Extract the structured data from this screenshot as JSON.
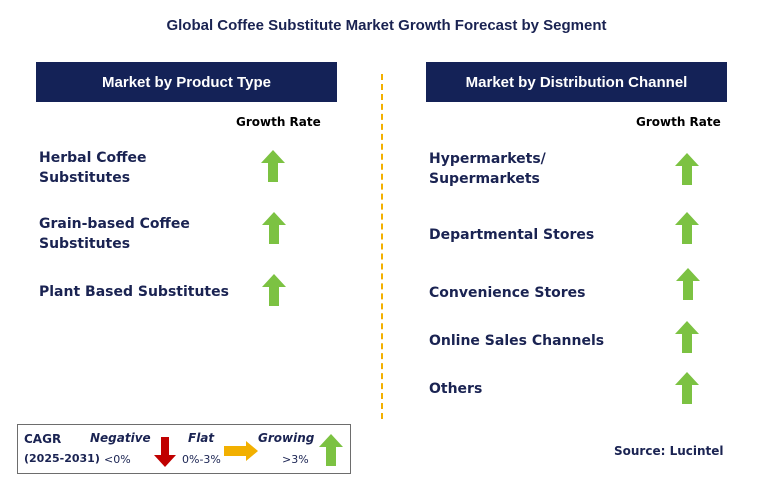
{
  "title": "Global Coffee Substitute Market Growth Forecast by Segment",
  "left_panel": {
    "header": "Market by Product Type",
    "growth_label": "Growth Rate",
    "items": [
      {
        "label_line1": "Herbal Coffee",
        "label_line2": "Substitutes",
        "trend": "growing"
      },
      {
        "label_line1": "Grain-based Coffee",
        "label_line2": "Substitutes",
        "trend": "growing"
      },
      {
        "label_line1": "Plant Based Substitutes",
        "label_line2": "",
        "trend": "growing"
      }
    ]
  },
  "right_panel": {
    "header": "Market by Distribution Channel",
    "growth_label": "Growth Rate",
    "items": [
      {
        "label_line1": "Hypermarkets/",
        "label_line2": "Supermarkets",
        "trend": "growing"
      },
      {
        "label_line1": "Departmental Stores",
        "label_line2": "",
        "trend": "growing"
      },
      {
        "label_line1": "Convenience Stores",
        "label_line2": "",
        "trend": "growing"
      },
      {
        "label_line1": "Online Sales Channels",
        "label_line2": "",
        "trend": "growing"
      },
      {
        "label_line1": "Others",
        "label_line2": "",
        "trend": "growing"
      }
    ]
  },
  "legend": {
    "cagr_label": "CAGR",
    "period": "(2025-2031)",
    "negative_label": "Negative",
    "negative_range": "<0%",
    "flat_label": "Flat",
    "flat_range": "0%-3%",
    "growing_label": "Growing",
    "growing_range": ">3%"
  },
  "source": "Source: Lucintel",
  "colors": {
    "header_bg": "#142257",
    "growing_arrow": "#7cc242",
    "negative_arrow": "#c00000",
    "flat_arrow": "#f2b000",
    "divider": "#f2b000",
    "text": "#1a2352"
  },
  "icons": {
    "growing": "green-up-arrow-icon",
    "negative": "red-down-arrow-icon",
    "flat": "yellow-right-arrow-icon"
  }
}
